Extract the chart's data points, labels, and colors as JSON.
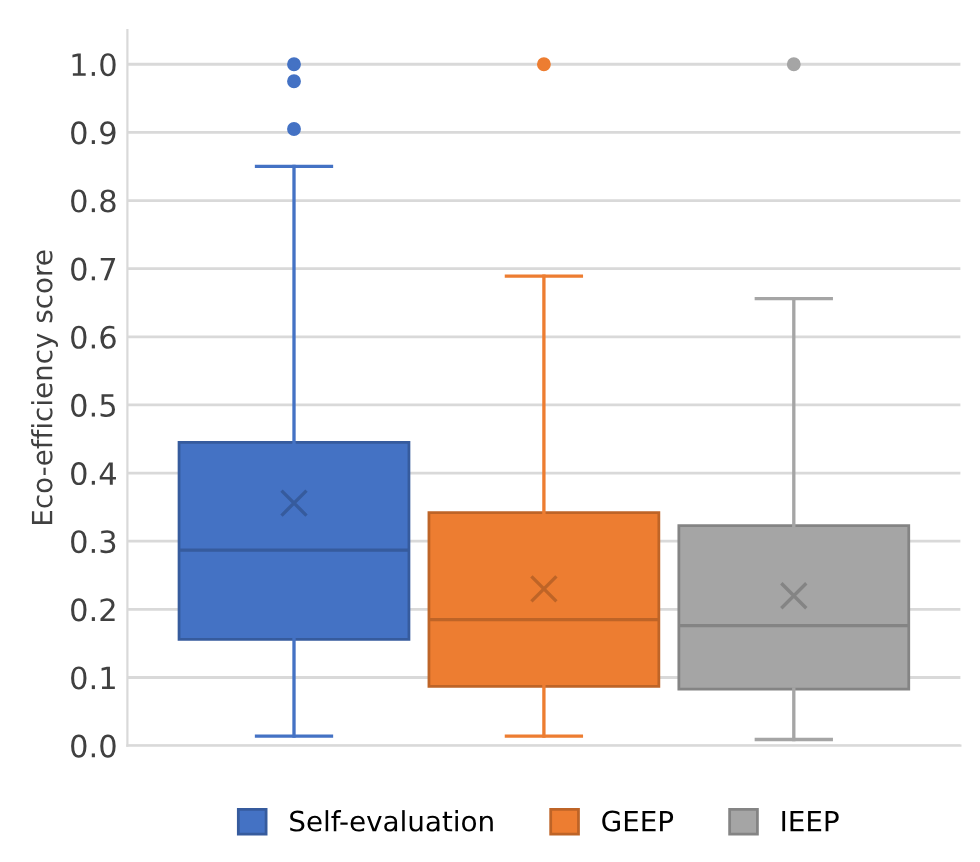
{
  "chart_data": {
    "type": "box",
    "ylabel": "Eco-efficiency score",
    "categories": [
      null
    ],
    "series": [
      {
        "name": "Self-evaluation",
        "color": "#4472c4",
        "boxes": [
          {
            "low": 0.014,
            "q1": 0.156,
            "median": 0.287,
            "q3": 0.445,
            "high": 0.85,
            "mean": 0.356,
            "outliers": [
              0.905,
              0.975,
              1.0
            ]
          }
        ]
      },
      {
        "name": "GEEP",
        "color": "#ed7d31",
        "boxes": [
          {
            "low": 0.014,
            "q1": 0.087,
            "median": 0.185,
            "q3": 0.342,
            "high": 0.689,
            "mean": 0.23,
            "outliers": [
              1.0
            ]
          }
        ]
      },
      {
        "name": "IEEP",
        "color": "#a5a5a5",
        "boxes": [
          {
            "low": 0.009,
            "q1": 0.083,
            "median": 0.176,
            "q3": 0.323,
            "high": 0.656,
            "mean": 0.22,
            "outliers": [
              1.0
            ]
          }
        ]
      }
    ],
    "ylim": [
      0,
      1.05
    ],
    "yticks": [
      {
        "value": 0,
        "label": "0.0"
      },
      {
        "value": 0.1,
        "label": "0.1"
      },
      {
        "value": 0.2,
        "label": "0.2"
      },
      {
        "value": 0.3,
        "label": "0.3"
      },
      {
        "value": 0.4,
        "label": "0.4"
      },
      {
        "value": 0.5,
        "label": "0.5"
      },
      {
        "value": 0.6,
        "label": "0.6"
      },
      {
        "value": 0.7,
        "label": "0.7"
      },
      {
        "value": 0.8,
        "label": "0.8"
      },
      {
        "value": 0.9,
        "label": "0.9"
      },
      {
        "value": 1.0,
        "label": "1.0"
      }
    ],
    "grid": "y",
    "legend": "bottom"
  }
}
